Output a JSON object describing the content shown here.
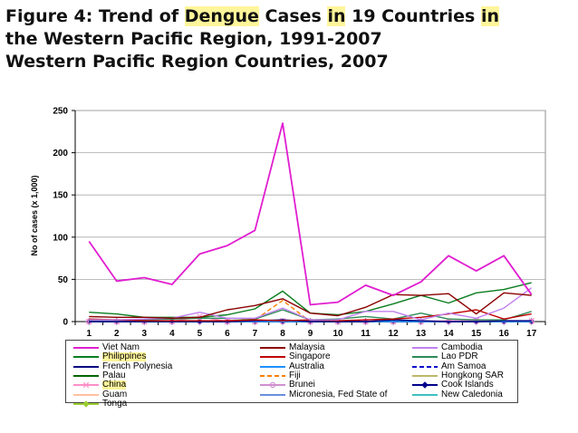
{
  "title": {
    "line1_parts": [
      "Figure 4:  Trend of ",
      "Dengue",
      " Cases ",
      "in",
      " 19 Countries ",
      "in"
    ],
    "line2": "the Western Pacific Region, 1991-2007",
    "line3": "Western Pacific Region Countries, 2007"
  },
  "chart_data": {
    "type": "line",
    "ylabel": "No of cases (x 1,000)",
    "xlabel": "",
    "x": [
      1,
      2,
      3,
      4,
      5,
      6,
      7,
      8,
      9,
      10,
      11,
      12,
      13,
      14,
      15,
      16,
      17
    ],
    "ylim": [
      0,
      250
    ],
    "yticks": [
      0,
      50,
      100,
      150,
      200,
      250
    ],
    "grid": "horizontal",
    "legend_position": "bottom",
    "series": [
      {
        "name": "Viet Nam",
        "color": "#e01ed0",
        "dash": "solid",
        "marker": "none",
        "values": [
          95,
          48,
          52,
          44,
          80,
          90,
          108,
          235,
          20,
          23,
          43,
          31,
          47,
          78,
          60,
          78,
          32
        ]
      },
      {
        "name": "Malaysia",
        "color": "#8b0000",
        "dash": "solid",
        "marker": "none",
        "values": [
          6,
          5,
          5,
          4,
          5,
          14,
          19,
          27,
          10,
          7,
          17,
          32,
          31,
          33,
          9,
          34,
          31
        ]
      },
      {
        "name": "Cambodia",
        "color": "#c080f0",
        "dash": "solid",
        "marker": "none",
        "values": [
          2,
          2,
          3,
          4,
          11,
          4,
          4,
          16,
          2,
          2,
          12,
          12,
          2,
          10,
          4,
          16,
          40
        ]
      },
      {
        "name": "Philippines",
        "color": "#0a7d1f",
        "dash": "solid",
        "marker": "none",
        "values": [
          11,
          9,
          5,
          5,
          5,
          8,
          15,
          36,
          10,
          8,
          12,
          21,
          31,
          22,
          34,
          38,
          46
        ]
      },
      {
        "name": "Singapore",
        "color": "#c00000",
        "dash": "solid",
        "marker": "none",
        "values": [
          3,
          2,
          1,
          1,
          1,
          1,
          2,
          1,
          2,
          1,
          2,
          3,
          5,
          9,
          14,
          3,
          9
        ]
      },
      {
        "name": "Lao PDR",
        "color": "#2e8b57",
        "dash": "solid",
        "marker": "none",
        "values": [
          2,
          2,
          2,
          3,
          4,
          4,
          3,
          14,
          2,
          3,
          6,
          3,
          10,
          3,
          2,
          2,
          12
        ]
      },
      {
        "name": "French Polynesia",
        "color": "#000080",
        "dash": "solid",
        "marker": "none",
        "values": [
          0,
          0,
          0,
          0,
          0,
          0,
          1,
          2,
          0,
          0,
          0,
          2,
          1,
          0,
          0,
          1,
          1
        ]
      },
      {
        "name": "Australia",
        "color": "#1e90ff",
        "dash": "solid",
        "marker": "none",
        "values": [
          0,
          0,
          0,
          0,
          0,
          0,
          0,
          0,
          0,
          0,
          0,
          0,
          0,
          0,
          0,
          0,
          0
        ]
      },
      {
        "name": "Am Samoa",
        "color": "#0000cd",
        "dash": "dashed",
        "marker": "none",
        "values": [
          0,
          0,
          0,
          0,
          0,
          0,
          0,
          0,
          0,
          0,
          0,
          0,
          0,
          0,
          0,
          0,
          0
        ]
      },
      {
        "name": "Palau",
        "color": "#006400",
        "dash": "solid",
        "marker": "none",
        "values": [
          0,
          0,
          0,
          0,
          0,
          0,
          0,
          0,
          0,
          0,
          0,
          0,
          0,
          0,
          0,
          0,
          0
        ]
      },
      {
        "name": "Fiji",
        "color": "#ff7f00",
        "dash": "dashed",
        "marker": "none",
        "values": [
          0,
          0,
          0,
          0,
          0,
          1,
          2,
          25,
          0,
          0,
          0,
          0,
          0,
          0,
          0,
          0,
          0
        ]
      },
      {
        "name": "Hongkong SAR",
        "color": "#bdb76b",
        "dash": "solid",
        "marker": "none",
        "values": [
          0,
          0,
          0,
          0,
          0,
          0,
          0,
          0,
          0,
          0,
          0,
          0,
          0,
          0,
          0,
          0,
          0
        ]
      },
      {
        "name": "China",
        "color": "#ff8fc8",
        "dash": "solid",
        "marker": "x",
        "values": [
          0,
          0,
          0,
          0,
          6,
          0,
          0,
          1,
          0,
          0,
          0,
          0,
          0,
          1,
          1,
          1,
          1
        ]
      },
      {
        "name": "Brunei",
        "color": "#d090d0",
        "dash": "solid",
        "marker": "circle",
        "values": [
          0,
          0,
          0,
          0,
          0,
          0,
          0,
          0,
          0,
          0,
          0,
          0,
          0,
          0,
          0,
          0,
          0
        ]
      },
      {
        "name": "Cook Islands",
        "color": "#00008b",
        "dash": "solid",
        "marker": "diamond",
        "values": [
          0,
          0,
          0,
          0,
          0,
          0,
          0,
          0,
          0,
          0,
          0,
          0,
          0,
          0,
          0,
          0,
          0
        ]
      },
      {
        "name": "Guam",
        "color": "#ffc0a0",
        "dash": "solid",
        "marker": "none",
        "values": [
          0,
          0,
          0,
          0,
          0,
          0,
          0,
          0,
          0,
          0,
          0,
          0,
          0,
          0,
          0,
          0,
          0
        ]
      },
      {
        "name": "Micronesia, Fed State of",
        "color": "#6a8fdc",
        "dash": "solid",
        "marker": "none",
        "values": [
          0,
          0,
          0,
          0,
          0,
          0,
          0,
          0,
          0,
          0,
          0,
          0,
          0,
          0,
          0,
          0,
          0
        ]
      },
      {
        "name": "New Caledonia",
        "color": "#40c0c0",
        "dash": "solid",
        "marker": "none",
        "values": [
          0,
          0,
          0,
          0,
          0,
          0,
          0,
          0,
          0,
          0,
          0,
          0,
          0,
          0,
          0,
          0,
          0
        ]
      },
      {
        "name": "Tonga",
        "color": "#9acd32",
        "dash": "solid",
        "marker": "diamond",
        "values": [
          0,
          0,
          0,
          0,
          0,
          0,
          0,
          0,
          0,
          0,
          0,
          0,
          0,
          0,
          0,
          0,
          0
        ]
      }
    ]
  }
}
